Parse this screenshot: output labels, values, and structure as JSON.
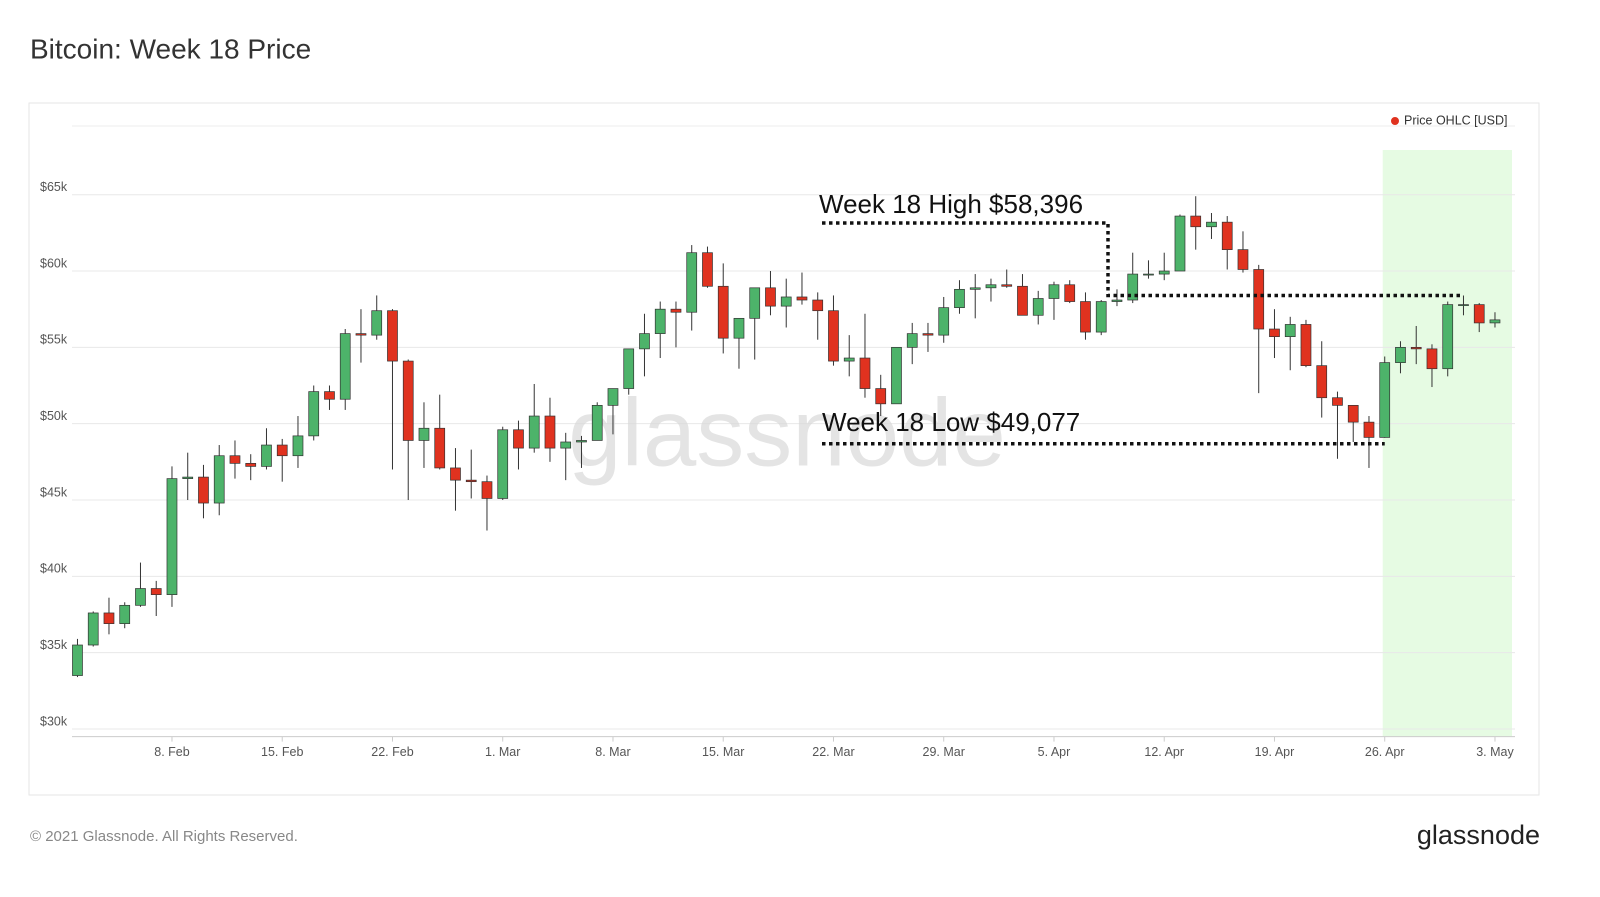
{
  "chart_data": {
    "type": "candlestick",
    "title": "Bitcoin: Week 18 Price",
    "watermark": "glassnode",
    "footer": "© 2021 Glassnode. All Rights Reserved.",
    "logo": "glassnode",
    "categories": [
      null,
      null,
      null,
      null,
      null,
      null,
      "8. Feb",
      null,
      null,
      null,
      null,
      null,
      null,
      "15. Feb",
      null,
      null,
      null,
      null,
      null,
      null,
      "22. Feb",
      null,
      null,
      null,
      null,
      null,
      null,
      "1. Mar",
      null,
      null,
      null,
      null,
      null,
      null,
      "8. Mar",
      null,
      null,
      null,
      null,
      null,
      null,
      "15. Mar",
      null,
      null,
      null,
      null,
      null,
      null,
      "22. Mar",
      null,
      null,
      null,
      null,
      null,
      null,
      "29. Mar",
      null,
      null,
      null,
      null,
      null,
      null,
      "5. Apr",
      null,
      null,
      null,
      null,
      null,
      null,
      "12. Apr",
      null,
      null,
      null,
      null,
      null,
      null,
      "19. Apr",
      null,
      null,
      null,
      null,
      null,
      null,
      "26. Apr",
      null,
      null,
      null,
      null,
      null,
      null,
      "3. May"
    ],
    "series": [
      {
        "name": "Price OHLC [USD]",
        "color": "#e0321f",
        "up_color": "#4db36a",
        "down_color": "#e0321f",
        "open": [
          33500,
          35500,
          37600,
          36900,
          38100,
          39200,
          38800,
          46400,
          46500,
          44800,
          47900,
          47400,
          47200,
          48600,
          47900,
          49200,
          52100,
          51600,
          55900,
          55800,
          57400,
          54100,
          48900,
          49700,
          47100,
          46300,
          46200,
          45100,
          49600,
          48400,
          50500,
          48400,
          48800,
          48900,
          51200,
          52300,
          54900,
          55900,
          57500,
          57300,
          61200,
          59000,
          55600,
          56900,
          58900,
          57700,
          58300,
          58100,
          57400,
          54100,
          54300,
          52300,
          51300,
          55000,
          55900,
          55800,
          57600,
          58800,
          58900,
          59100,
          59000,
          57100,
          58200,
          59100,
          58000,
          56000,
          58000,
          58100,
          59800,
          59800,
          60000,
          63600,
          62900,
          63200,
          61400,
          60100,
          56200,
          55700,
          56500,
          53800,
          51700,
          51200,
          50100,
          49100,
          54000,
          55000,
          54900,
          53600,
          57800,
          57800,
          56600
        ],
        "high": [
          35900,
          37700,
          38600,
          38300,
          40900,
          39700,
          47200,
          48100,
          47300,
          48600,
          48900,
          48000,
          49700,
          49000,
          50500,
          52500,
          52500,
          56200,
          57500,
          58400,
          57500,
          54200,
          51400,
          51900,
          48400,
          48300,
          46600,
          49800,
          50200,
          52600,
          51700,
          49400,
          49200,
          51400,
          52300,
          54900,
          57200,
          58000,
          58000,
          61700,
          61600,
          60500,
          56900,
          58900,
          60000,
          59500,
          59900,
          58600,
          58400,
          55800,
          57200,
          53200,
          55000,
          56600,
          56600,
          58300,
          59400,
          59800,
          59500,
          60100,
          59800,
          58700,
          59300,
          59400,
          58600,
          58100,
          58800,
          61200,
          60700,
          61200,
          63700,
          64900,
          63800,
          63600,
          62600,
          60400,
          57500,
          57000,
          56800,
          55400,
          52100,
          51200,
          50500,
          54400,
          55400,
          56400,
          55200,
          58000,
          58396,
          57900,
          57300
        ],
        "low": [
          33400,
          35400,
          36200,
          36600,
          38000,
          37400,
          38000,
          45000,
          43800,
          44000,
          46400,
          46300,
          47000,
          46200,
          47100,
          48900,
          50900,
          50900,
          54000,
          55500,
          47000,
          45000,
          47100,
          47000,
          44300,
          45100,
          43000,
          45000,
          47000,
          48100,
          47500,
          46300,
          47100,
          48900,
          49300,
          51900,
          53100,
          54300,
          55000,
          56100,
          58900,
          54600,
          53600,
          54200,
          57100,
          56300,
          57800,
          55500,
          53800,
          53100,
          51700,
          50500,
          51300,
          53900,
          54700,
          55300,
          57200,
          56900,
          58000,
          58900,
          57100,
          56500,
          56800,
          57900,
          55500,
          55800,
          57700,
          57900,
          59500,
          59400,
          60000,
          61400,
          62100,
          60100,
          59900,
          52000,
          54300,
          53500,
          53700,
          50400,
          47700,
          48800,
          47100,
          49077,
          53300,
          53900,
          52400,
          53100,
          57100,
          56000,
          56300
        ],
        "close": [
          35500,
          37600,
          36900,
          38100,
          39200,
          38800,
          46400,
          46500,
          44800,
          47900,
          47400,
          47200,
          48600,
          47900,
          49200,
          52100,
          51600,
          55900,
          55800,
          57400,
          54100,
          48900,
          49700,
          47100,
          46300,
          46200,
          45100,
          49600,
          48400,
          50500,
          48400,
          48800,
          48900,
          51200,
          52300,
          54900,
          55900,
          57500,
          57300,
          61200,
          59000,
          55600,
          56900,
          58900,
          57700,
          58300,
          58100,
          57400,
          54100,
          54300,
          52300,
          51300,
          55000,
          55900,
          55800,
          57600,
          58800,
          58900,
          59100,
          59000,
          57100,
          58200,
          59100,
          58000,
          56000,
          58000,
          58100,
          59800,
          59800,
          60000,
          63600,
          62900,
          63200,
          61400,
          60100,
          56200,
          55700,
          56500,
          53800,
          51700,
          51200,
          50100,
          49100,
          54000,
          55000,
          54900,
          53600,
          57800,
          57800,
          56600,
          56800
        ]
      }
    ],
    "ylim": [
      29500,
      69500
    ],
    "yticks": [
      {
        "value": 30000,
        "label": "$30k"
      },
      {
        "value": 35000,
        "label": "$35k"
      },
      {
        "value": 40000,
        "label": "$40k"
      },
      {
        "value": 45000,
        "label": "$45k"
      },
      {
        "value": 50000,
        "label": "$50k"
      },
      {
        "value": 55000,
        "label": "$55k"
      },
      {
        "value": 60000,
        "label": "$60k"
      },
      {
        "value": 65000,
        "label": "$65k"
      }
    ],
    "grid": true,
    "legend": "top-right",
    "shaded_from": "26. Apr",
    "shade_color": "#e6fbe3",
    "annotations": [
      {
        "text": "Week 18 High $58,396",
        "value": 58396
      },
      {
        "text": "Week 18 Low $49,077",
        "value": 49077
      }
    ]
  }
}
